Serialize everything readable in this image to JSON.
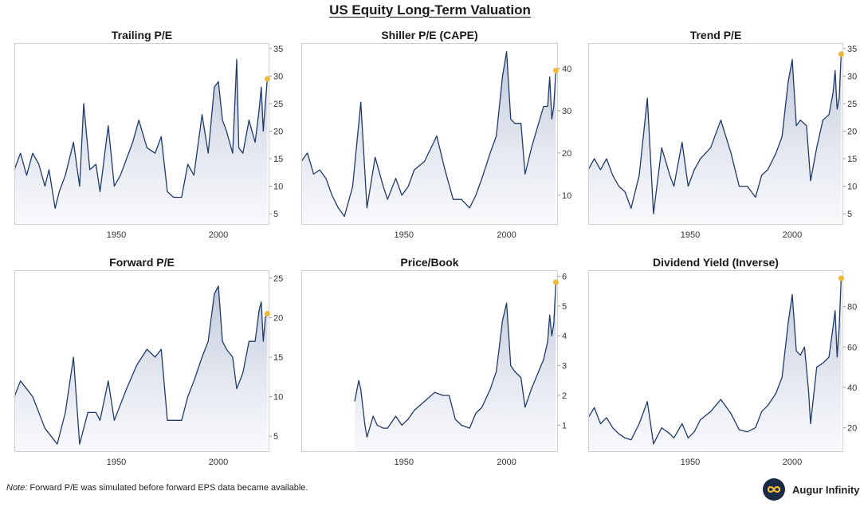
{
  "title": "US Equity Long-Term Valuation",
  "footnote": {
    "prefix": "Note:",
    "text": " Forward P/E was simulated before forward EPS data became available."
  },
  "brand": {
    "name": "Augur Infinity",
    "logo_icon": "infinity-logo-icon"
  },
  "colors": {
    "line": "#1f3a68",
    "fill_top": "#b8c2d6",
    "fill_bottom": "#f3f5f9",
    "marker": "#f0b93a"
  },
  "chart_data": [
    {
      "type": "area",
      "title": "Trailing P/E",
      "x_range": [
        1900,
        2025
      ],
      "ylim": [
        3,
        36
      ],
      "yticks": [
        5,
        10,
        15,
        20,
        25,
        30,
        35
      ],
      "xticks": [
        1950,
        2000
      ],
      "grid": false,
      "latest_marker": {
        "x": 2024,
        "y": 29.5
      },
      "series": [
        {
          "x": [
            1900,
            1903,
            1906,
            1909,
            1912,
            1915,
            1917,
            1920,
            1922,
            1925,
            1929,
            1932,
            1934,
            1937,
            1940,
            1942,
            1946,
            1949,
            1952,
            1955,
            1958,
            1961,
            1965,
            1969,
            1972,
            1975,
            1978,
            1982,
            1985,
            1988,
            1992,
            1995,
            1998,
            2000,
            2002,
            2004,
            2007,
            2009,
            2010,
            2012,
            2015,
            2018,
            2020,
            2021,
            2022,
            2023,
            2024
          ],
          "y": [
            13,
            16,
            12,
            16,
            14,
            10,
            13,
            6,
            9,
            12,
            18,
            10,
            25,
            13,
            14,
            9,
            21,
            10,
            12,
            15,
            18,
            22,
            17,
            16,
            19,
            9,
            8,
            8,
            14,
            12,
            23,
            16,
            28,
            29,
            22,
            20,
            16,
            33,
            17,
            16,
            22,
            18,
            24,
            28,
            20,
            25,
            29.5
          ]
        }
      ]
    },
    {
      "type": "area",
      "title": "Shiller P/E (CAPE)",
      "x_range": [
        1900,
        2025
      ],
      "ylim": [
        3,
        46
      ],
      "yticks": [
        10,
        20,
        30,
        40
      ],
      "xticks": [
        1950,
        2000
      ],
      "grid": false,
      "latest_marker": {
        "x": 2024,
        "y": 39.5
      },
      "series": [
        {
          "x": [
            1900,
            1903,
            1906,
            1909,
            1912,
            1915,
            1918,
            1921,
            1925,
            1929,
            1932,
            1936,
            1940,
            1942,
            1946,
            1949,
            1952,
            1955,
            1960,
            1965,
            1966,
            1970,
            1974,
            1978,
            1982,
            1985,
            1988,
            1992,
            1995,
            1998,
            2000,
            2002,
            2004,
            2007,
            2009,
            2012,
            2015,
            2018,
            2020,
            2021,
            2022,
            2023,
            2024
          ],
          "y": [
            18,
            20,
            15,
            16,
            14,
            10,
            7,
            5,
            12,
            32,
            7,
            19,
            12,
            9,
            14,
            10,
            12,
            16,
            18,
            23,
            24,
            16,
            9,
            9,
            7,
            10,
            14,
            20,
            24,
            38,
            44,
            28,
            27,
            27,
            15,
            21,
            26,
            31,
            31,
            38,
            28,
            31,
            39.5
          ]
        }
      ]
    },
    {
      "type": "area",
      "title": "Trend P/E",
      "x_range": [
        1900,
        2025
      ],
      "ylim": [
        3,
        36
      ],
      "yticks": [
        5,
        10,
        15,
        20,
        25,
        30,
        35
      ],
      "xticks": [
        1950,
        2000
      ],
      "grid": false,
      "latest_marker": {
        "x": 2024,
        "y": 34
      },
      "series": [
        {
          "x": [
            1900,
            1903,
            1906,
            1909,
            1912,
            1915,
            1918,
            1921,
            1925,
            1929,
            1932,
            1936,
            1940,
            1942,
            1946,
            1949,
            1952,
            1955,
            1960,
            1965,
            1970,
            1974,
            1978,
            1982,
            1985,
            1988,
            1992,
            1995,
            1998,
            2000,
            2002,
            2004,
            2007,
            2009,
            2012,
            2015,
            2018,
            2020,
            2021,
            2022,
            2023,
            2024
          ],
          "y": [
            13,
            15,
            13,
            15,
            12,
            10,
            9,
            6,
            12,
            26,
            5,
            17,
            12,
            10,
            18,
            10,
            13,
            15,
            17,
            22,
            16,
            10,
            10,
            8,
            12,
            13,
            16,
            19,
            29,
            33,
            21,
            22,
            21,
            11,
            17,
            22,
            23,
            27,
            31,
            24,
            26,
            34
          ]
        }
      ]
    },
    {
      "type": "area",
      "title": "Forward P/E",
      "x_range": [
        1900,
        2025
      ],
      "ylim": [
        3,
        26
      ],
      "yticks": [
        5,
        10,
        15,
        20,
        25
      ],
      "xticks": [
        1950,
        2000
      ],
      "grid": false,
      "latest_marker": {
        "x": 2024,
        "y": 20.5
      },
      "series": [
        {
          "x": [
            1900,
            1903,
            1906,
            1909,
            1912,
            1915,
            1918,
            1921,
            1925,
            1929,
            1932,
            1936,
            1940,
            1942,
            1946,
            1949,
            1952,
            1955,
            1960,
            1965,
            1969,
            1972,
            1975,
            1978,
            1982,
            1985,
            1988,
            1992,
            1995,
            1998,
            2000,
            2002,
            2004,
            2007,
            2009,
            2012,
            2015,
            2018,
            2020,
            2021,
            2022,
            2023,
            2024
          ],
          "y": [
            10,
            12,
            11,
            10,
            8,
            6,
            5,
            4,
            8,
            15,
            4,
            8,
            8,
            7,
            12,
            7,
            9,
            11,
            14,
            16,
            15,
            16,
            7,
            7,
            7,
            10,
            12,
            15,
            17,
            23,
            24,
            17,
            16,
            15,
            11,
            13,
            17,
            17,
            21,
            22,
            17,
            20,
            20.5
          ]
        }
      ]
    },
    {
      "type": "area",
      "title": "Price/Book",
      "x_range": [
        1900,
        2025
      ],
      "ylim": [
        0.1,
        6.2
      ],
      "yticks": [
        1,
        2,
        3,
        4,
        5,
        6
      ],
      "xticks": [
        1950,
        2000
      ],
      "grid": false,
      "latest_marker": {
        "x": 2024,
        "y": 5.8
      },
      "series": [
        {
          "x": [
            1926,
            1928,
            1929,
            1931,
            1932,
            1935,
            1937,
            1940,
            1942,
            1946,
            1949,
            1952,
            1955,
            1960,
            1965,
            1969,
            1972,
            1975,
            1978,
            1982,
            1985,
            1988,
            1992,
            1995,
            1998,
            2000,
            2002,
            2004,
            2007,
            2009,
            2012,
            2015,
            2018,
            2020,
            2021,
            2022,
            2023,
            2024
          ],
          "y": [
            1.8,
            2.5,
            2.2,
            1.0,
            0.6,
            1.3,
            1.0,
            0.9,
            0.9,
            1.3,
            1.0,
            1.2,
            1.5,
            1.8,
            2.1,
            2.0,
            2.0,
            1.2,
            1.0,
            0.9,
            1.4,
            1.6,
            2.2,
            2.8,
            4.5,
            5.1,
            3.0,
            2.8,
            2.6,
            1.6,
            2.2,
            2.7,
            3.2,
            3.8,
            4.7,
            4.0,
            4.4,
            5.8
          ]
        }
      ]
    },
    {
      "type": "area",
      "title": "Dividend Yield (Inverse)",
      "x_range": [
        1900,
        2025
      ],
      "ylim": [
        8,
        98
      ],
      "yticks": [
        20,
        40,
        60,
        80
      ],
      "xticks": [
        1950,
        2000
      ],
      "grid": false,
      "latest_marker": {
        "x": 2024,
        "y": 94
      },
      "series": [
        {
          "x": [
            1900,
            1903,
            1906,
            1909,
            1912,
            1915,
            1918,
            1921,
            1925,
            1929,
            1932,
            1936,
            1940,
            1942,
            1946,
            1949,
            1952,
            1955,
            1960,
            1965,
            1970,
            1974,
            1978,
            1982,
            1985,
            1988,
            1992,
            1995,
            1998,
            2000,
            2002,
            2004,
            2006,
            2008,
            2009,
            2012,
            2015,
            2018,
            2020,
            2021,
            2022,
            2023,
            2024
          ],
          "y": [
            25,
            30,
            22,
            25,
            20,
            17,
            15,
            14,
            22,
            33,
            12,
            20,
            17,
            15,
            22,
            15,
            18,
            24,
            28,
            34,
            27,
            19,
            18,
            20,
            28,
            31,
            37,
            45,
            72,
            86,
            58,
            56,
            60,
            38,
            22,
            50,
            52,
            55,
            70,
            78,
            55,
            70,
            94
          ]
        }
      ]
    }
  ]
}
